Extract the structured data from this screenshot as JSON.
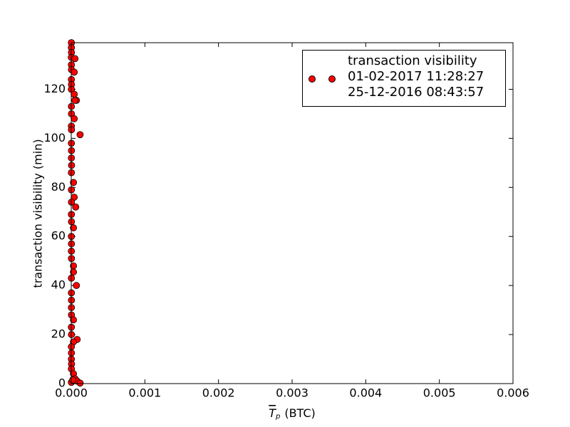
{
  "chart_data": {
    "type": "scatter",
    "x_label": {
      "symbol": "T",
      "subscript": "p",
      "unit": "(BTC)"
    },
    "y_label": "transaction visibility (min)",
    "xlim": [
      0,
      0.006
    ],
    "ylim": [
      0,
      139
    ],
    "xticks": [
      {
        "value": 0,
        "label": "0.000"
      },
      {
        "value": 0.001,
        "label": "0.001"
      },
      {
        "value": 0.002,
        "label": "0.002"
      },
      {
        "value": 0.003,
        "label": "0.003"
      },
      {
        "value": 0.004,
        "label": "0.004"
      },
      {
        "value": 0.005,
        "label": "0.005"
      },
      {
        "value": 0.006,
        "label": "0.006"
      }
    ],
    "yticks": [
      0,
      20,
      40,
      60,
      80,
      100,
      120
    ],
    "legend": "upper right",
    "series": [
      {
        "name": "transaction visibility\n01-02-2017 11:28:27\n25-12-2016 08:43:57",
        "color": "#ff0000",
        "x": [
          2e-06,
          2e-06,
          3e-06,
          1e-06,
          5e-05,
          2e-06,
          3e-06,
          4e-05,
          2e-06,
          3e-06,
          2e-06,
          4e-05,
          7e-05,
          5e-05,
          2e-06,
          3e-06,
          4e-05,
          2e-06,
          3e-06,
          0.00012,
          2e-06,
          3e-06,
          2e-06,
          4e-06,
          2e-06,
          3e-05,
          2e-06,
          4e-05,
          3e-06,
          6e-05,
          2e-06,
          3e-06,
          3e-05,
          2e-06,
          3e-06,
          2e-06,
          3e-06,
          3e-05,
          3e-05,
          2e-06,
          7e-05,
          2e-06,
          3e-06,
          2e-06,
          3e-06,
          3e-05,
          2e-06,
          3e-06,
          8e-05,
          3e-05,
          2e-06,
          3e-06,
          2e-06,
          4e-06,
          2e-06,
          3e-05,
          5e-05,
          8e-05,
          0.00012,
          2e-06,
          2e-05
        ],
        "y": [
          139,
          137,
          135,
          133,
          132.5,
          130,
          128,
          127,
          124,
          122,
          120,
          118,
          115.5,
          115.5,
          113,
          110,
          108,
          105,
          103.5,
          101.5,
          98,
          95,
          92,
          89,
          86,
          82,
          79,
          76,
          74,
          72,
          69,
          66,
          63.5,
          60,
          57,
          54,
          51,
          48,
          45.5,
          43,
          40,
          37,
          34,
          31,
          28,
          26,
          23,
          20,
          18,
          17,
          15,
          12.5,
          10,
          8,
          6,
          4,
          2,
          1,
          0.2,
          0.5,
          1.5
        ]
      }
    ]
  }
}
